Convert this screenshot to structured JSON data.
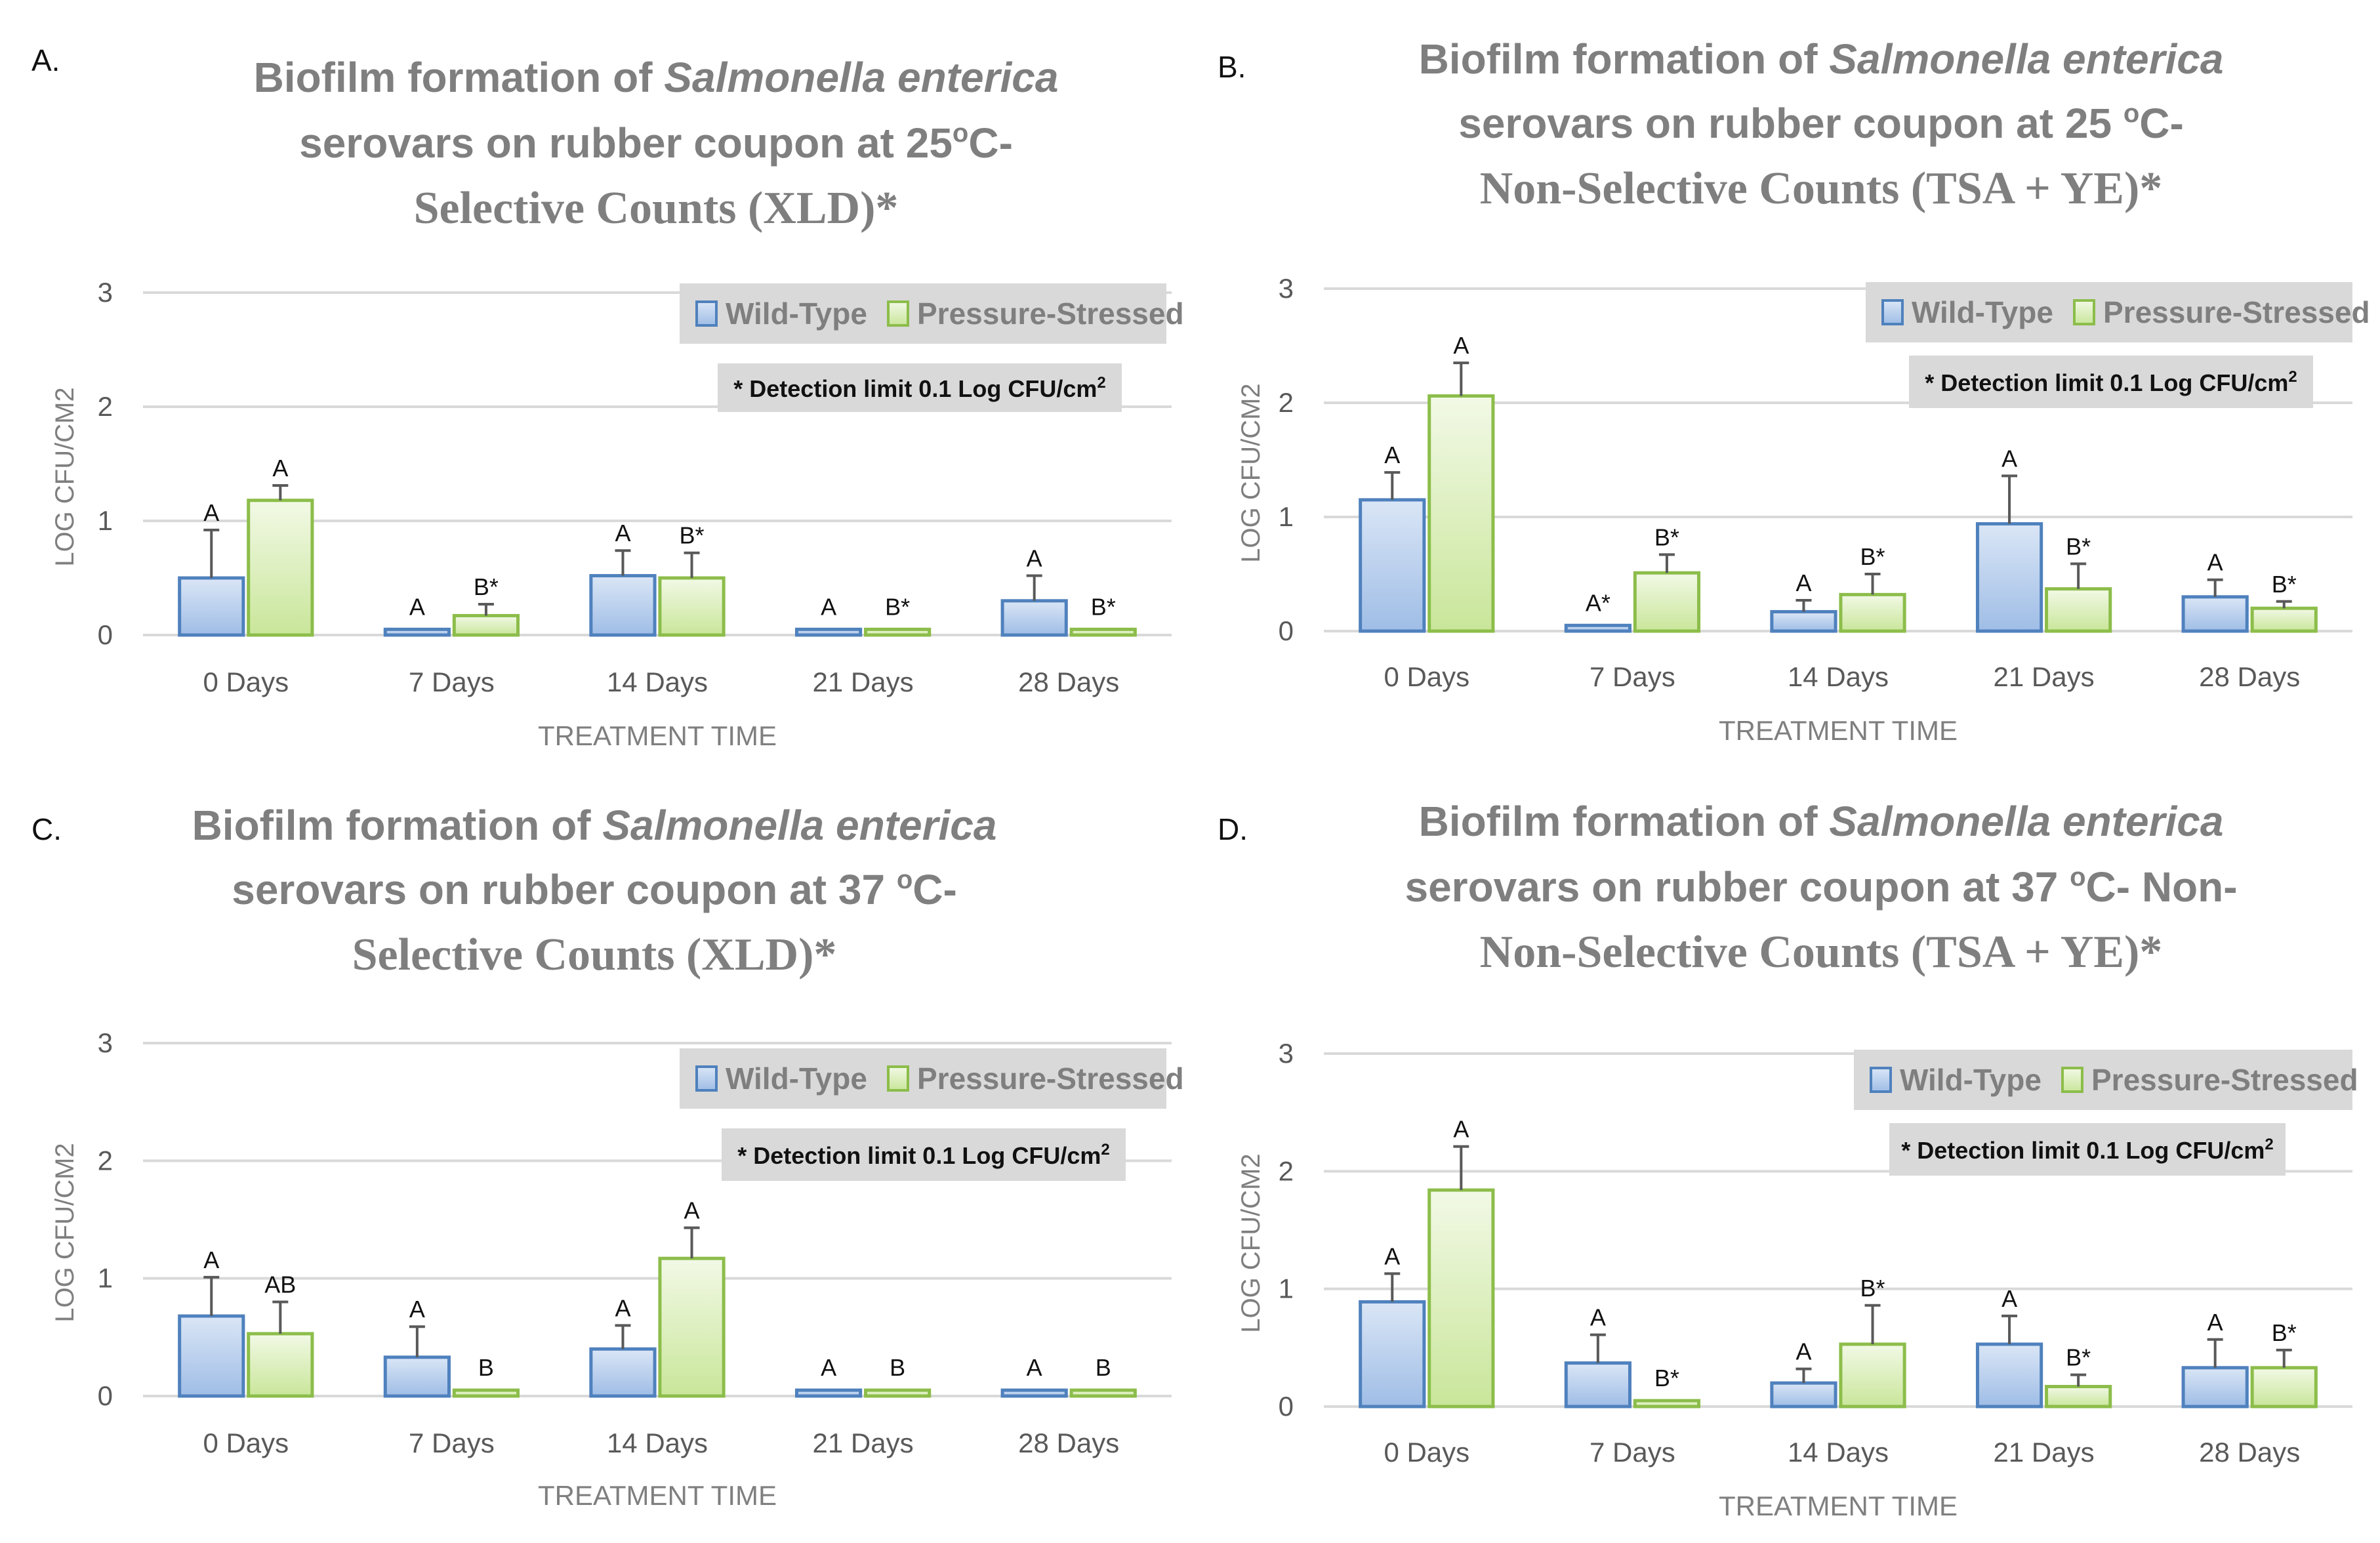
{
  "colors": {
    "wild_type_stroke": "#4f81bd",
    "wild_type_fill_top": "#dae6f6",
    "wild_type_fill_bottom": "#9fbde6",
    "stressed_stroke": "#8cbd4a",
    "stressed_fill_top": "#f2f9e6",
    "stressed_fill_bottom": "#c9e69a",
    "legend_bg": "#d9d9d9",
    "grid": "#d9d9d9",
    "error_bar": "#595959"
  },
  "legend": {
    "wild_type": "Wild-Type",
    "stressed": "Pressure-Stressed"
  },
  "note": {
    "text": "* Detection limit 0.1 Log CFU/cm",
    "sup": "2"
  },
  "chart_data": [
    {
      "type": "bar",
      "panel": "A.",
      "title_line1": {
        "prefix": "Biofilm formation of ",
        "italic": "Salmonella enterica"
      },
      "title_line2": {
        "text": "serovars on rubber coupon at 25",
        "sup": "o",
        "tail": "C-"
      },
      "title_line3": "Selective  Counts  (XLD)*",
      "xlabel": "TREATMENT TIME",
      "ylabel": "LOG CFU/CM2",
      "ylim": [
        0,
        3
      ],
      "yticks": [
        "0",
        "1",
        "2",
        "3"
      ],
      "categories": [
        "0 Days",
        "7 Days",
        "14 Days",
        "21 Days",
        "28 Days"
      ],
      "series": [
        {
          "name": "Wild-Type",
          "values": [
            0.5,
            0.05,
            0.52,
            0.05,
            0.3
          ],
          "errors": [
            0.42,
            0,
            0.22,
            0,
            0.22
          ],
          "labels": [
            "A",
            "A",
            "A",
            "A",
            "A"
          ]
        },
        {
          "name": "Pressure-Stressed",
          "values": [
            1.18,
            0.17,
            0.5,
            0.05,
            0.05
          ],
          "errors": [
            0.13,
            0.1,
            0.22,
            0,
            0
          ],
          "labels": [
            "A",
            "B*",
            "B*",
            "B*",
            "B*"
          ]
        }
      ]
    },
    {
      "type": "bar",
      "panel": "B.",
      "title_line1": {
        "prefix": "Biofilm formation of ",
        "italic": "Salmonella enterica"
      },
      "title_line2": {
        "text": "serovars on rubber coupon at 25 ",
        "sup": "o",
        "tail": "C-"
      },
      "title_line3": "Non-Selective  Counts  (TSA + YE)*",
      "xlabel": "TREATMENT TIME",
      "ylabel": "LOG CFU/CM2",
      "ylim": [
        0,
        3
      ],
      "yticks": [
        "0",
        "1",
        "2",
        "3"
      ],
      "categories": [
        "0 Days",
        "7 Days",
        "14 Days",
        "21 Days",
        "28 Days"
      ],
      "series": [
        {
          "name": "Wild-Type",
          "values": [
            1.15,
            0.05,
            0.17,
            0.94,
            0.3
          ],
          "errors": [
            0.24,
            0,
            0.1,
            0.42,
            0.15
          ],
          "labels": [
            "A",
            "A*",
            "A",
            "A",
            "A"
          ]
        },
        {
          "name": "Pressure-Stressed",
          "values": [
            2.06,
            0.51,
            0.32,
            0.37,
            0.2
          ],
          "errors": [
            0.29,
            0.16,
            0.18,
            0.22,
            0.06
          ],
          "labels": [
            "A",
            "B*",
            "B*",
            "B*",
            "B*"
          ]
        }
      ]
    },
    {
      "type": "bar",
      "panel": "C.",
      "title_line1": {
        "prefix": "Biofilm formation of ",
        "italic": "Salmonella enterica"
      },
      "title_line2": {
        "text": "serovars on rubber coupon at 37 ",
        "sup": "o",
        "tail": "C-"
      },
      "title_line3": "Selective  Counts  (XLD)*",
      "xlabel": "TREATMENT TIME",
      "ylabel": "LOG CFU/CM2",
      "ylim": [
        0,
        3
      ],
      "yticks": [
        "0",
        "1",
        "2",
        "3"
      ],
      "categories": [
        "0 Days",
        "7 Days",
        "14 Days",
        "21 Days",
        "28 Days"
      ],
      "series": [
        {
          "name": "Wild-Type",
          "values": [
            0.68,
            0.33,
            0.4,
            0.05,
            0.05
          ],
          "errors": [
            0.33,
            0.26,
            0.2,
            0,
            0
          ],
          "labels": [
            "A",
            "A",
            "A",
            "A",
            "A"
          ]
        },
        {
          "name": "Pressure-Stressed",
          "values": [
            0.53,
            0.05,
            1.17,
            0.05,
            0.05
          ],
          "errors": [
            0.27,
            0,
            0.26,
            0,
            0
          ],
          "labels": [
            "AB",
            "B",
            "A",
            "B",
            "B"
          ]
        }
      ]
    },
    {
      "type": "bar",
      "panel": "D.",
      "title_line1": {
        "prefix": "Biofilm formation of ",
        "italic": "Salmonella enterica"
      },
      "title_line2": {
        "text": "serovars on rubber coupon at 37 ",
        "sup": "o",
        "tail": "C- Non-"
      },
      "title_line3": "Non-Selective  Counts  (TSA + YE)*",
      "xlabel": "TREATMENT TIME",
      "ylabel": "LOG CFU/CM2",
      "ylim": [
        0,
        3
      ],
      "yticks": [
        "0",
        "1",
        "2",
        "3"
      ],
      "categories": [
        "0 Days",
        "7 Days",
        "14 Days",
        "21 Days",
        "28 Days"
      ],
      "series": [
        {
          "name": "Wild-Type",
          "values": [
            0.89,
            0.37,
            0.2,
            0.53,
            0.33
          ],
          "errors": [
            0.24,
            0.24,
            0.12,
            0.24,
            0.24
          ],
          "labels": [
            "A",
            "A",
            "A",
            "A",
            "A"
          ]
        },
        {
          "name": "Pressure-Stressed",
          "values": [
            1.84,
            0.05,
            0.53,
            0.17,
            0.33
          ],
          "errors": [
            0.37,
            0,
            0.33,
            0.1,
            0.15
          ],
          "labels": [
            "A",
            "B*",
            "B*",
            "B*",
            "B*"
          ]
        }
      ]
    }
  ]
}
